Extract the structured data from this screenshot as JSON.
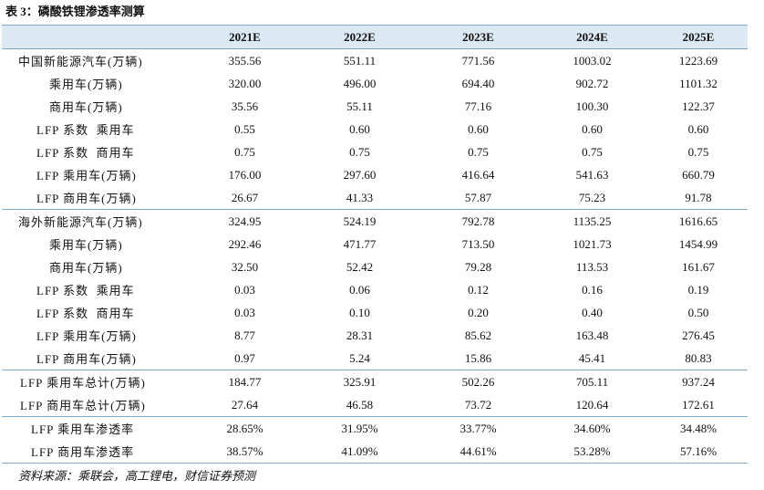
{
  "header": {
    "title": "表 3：磷酸铁锂渗透率测算"
  },
  "table": {
    "columns": [
      "2021E",
      "2022E",
      "2023E",
      "2024E",
      "2025E"
    ],
    "rows": [
      [
        "中国新能源汽车(万辆)",
        "355.56",
        "551.11",
        "771.56",
        "1003.02",
        "1223.69"
      ],
      [
        "乘用车(万辆)",
        "320.00",
        "496.00",
        "694.40",
        "902.72",
        "1101.32"
      ],
      [
        "商用车(万辆)",
        "35.56",
        "55.11",
        "77.16",
        "100.30",
        "122.37"
      ],
      [
        "LFP 系数  乘用车",
        "0.55",
        "0.60",
        "0.60",
        "0.60",
        "0.60"
      ],
      [
        "LFP 系数  商用车",
        "0.75",
        "0.75",
        "0.75",
        "0.75",
        "0.75"
      ],
      [
        "LFP 乘用车(万辆)",
        "176.00",
        "297.60",
        "416.64",
        "541.63",
        "660.79"
      ],
      [
        "LFP 商用车(万辆)",
        "26.67",
        "41.33",
        "57.87",
        "75.23",
        "91.78"
      ],
      [
        "海外新能源汽车(万辆)",
        "324.95",
        "524.19",
        "792.78",
        "1135.25",
        "1616.65"
      ],
      [
        "乘用车(万辆)",
        "292.46",
        "471.77",
        "713.50",
        "1021.73",
        "1454.99"
      ],
      [
        "商用车(万辆)",
        "32.50",
        "52.42",
        "79.28",
        "113.53",
        "161.67"
      ],
      [
        "LFP 系数  乘用车",
        "0.03",
        "0.06",
        "0.12",
        "0.16",
        "0.19"
      ],
      [
        "LFP 系数  商用车",
        "0.03",
        "0.10",
        "0.20",
        "0.40",
        "0.50"
      ],
      [
        "LFP 乘用车(万辆)",
        "8.77",
        "28.31",
        "85.62",
        "163.48",
        "276.45"
      ],
      [
        "LFP 商用车(万辆)",
        "0.97",
        "5.24",
        "15.86",
        "45.41",
        "80.83"
      ],
      [
        "LFP 乘用车总计(万辆)",
        "184.77",
        "325.91",
        "502.26",
        "705.11",
        "937.24"
      ],
      [
        "LFP 商用车总计(万辆)",
        "27.64",
        "46.58",
        "73.72",
        "120.64",
        "172.61"
      ],
      [
        "LFP 乘用车渗透率",
        "28.65%",
        "31.95%",
        "33.77%",
        "34.60%",
        "34.48%"
      ],
      [
        "LFP 商用车渗透率",
        "38.57%",
        "41.09%",
        "44.61%",
        "53.28%",
        "57.16%"
      ]
    ]
  },
  "footer": {
    "source": "资料来源：乘联会，高工锂电，财信证券预测"
  }
}
